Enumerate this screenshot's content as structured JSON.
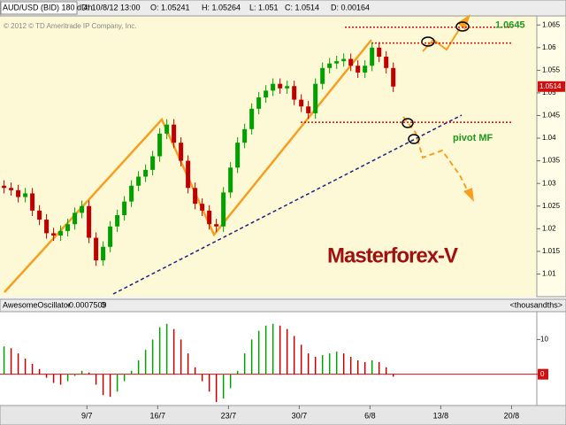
{
  "header": {
    "symbol": "AUD/USD (BID) 180 d 4h",
    "date": "D: 10/8/12 13:00",
    "open": "O: 1.05241",
    "high": "H: 1.05264",
    "low": "L: 1.051",
    "close": "C: 1.0514",
    "delta": "D: 0.00164",
    "copyright": "© 2012 © TD Ameritrade IP Company, Inc."
  },
  "chart_data": [
    {
      "type": "candlestick",
      "annotations": [
        "Masterforex-V",
        "pivot MF"
      ],
      "levels": [
        1.0645,
        1.061,
        1.0435
      ],
      "level_color": "#d01010",
      "up_color": "#00a000",
      "down_color": "#c00000",
      "x": [
        0.8,
        1.5,
        2.2,
        2.9,
        3.6,
        4.3,
        5,
        5.7,
        6.4,
        7.1,
        7.8,
        8.5,
        9.2,
        9.9,
        10.6,
        11.3,
        12,
        12.7,
        13.4,
        14.1,
        14.8,
        15.5,
        16.2,
        16.9,
        17.6,
        18.3,
        19,
        19.7,
        20.4,
        21.1,
        21.8,
        22.5,
        23.2,
        23.9,
        24.6,
        25.3,
        26,
        26.7,
        27.4,
        28.1,
        28.8,
        29.5,
        30.2,
        30.9,
        31.6,
        32.3,
        33,
        33.7,
        34.4,
        35.1,
        35.8,
        36.5,
        37.2,
        37.9,
        38.6,
        39.3
      ],
      "open": [
        1.0295,
        1.029,
        1.0285,
        1.027,
        1.0278,
        1.024,
        1.022,
        1.019,
        1.0185,
        1.0195,
        1.021,
        1.0235,
        1.025,
        1.018,
        1.013,
        1.016,
        1.0205,
        1.023,
        1.026,
        1.0295,
        1.0315,
        1.033,
        1.036,
        1.041,
        1.043,
        1.039,
        1.035,
        1.029,
        1.0255,
        1.024,
        1.021,
        1.0205,
        1.028,
        1.0335,
        1.039,
        1.042,
        1.0465,
        1.049,
        1.0505,
        1.052,
        1.051,
        1.0515,
        1.0485,
        1.047,
        1.0455,
        1.052,
        1.0555,
        1.0565,
        1.057,
        1.0575,
        1.056,
        1.0545,
        1.056,
        1.06,
        1.058,
        1.0555
      ],
      "high": [
        1.0307,
        1.0302,
        1.0297,
        1.029,
        1.029,
        1.0252,
        1.0232,
        1.0202,
        1.0207,
        1.0222,
        1.0247,
        1.0262,
        1.0262,
        1.0192,
        1.0172,
        1.0217,
        1.0242,
        1.0272,
        1.0307,
        1.0327,
        1.0342,
        1.0372,
        1.0422,
        1.0442,
        1.0442,
        1.0402,
        1.0362,
        1.0302,
        1.0267,
        1.0252,
        1.0222,
        1.0292,
        1.0347,
        1.0402,
        1.0432,
        1.0477,
        1.0502,
        1.0517,
        1.0532,
        1.0532,
        1.0527,
        1.0527,
        1.0497,
        1.0482,
        1.0532,
        1.0567,
        1.0577,
        1.0582,
        1.0587,
        1.0587,
        1.0572,
        1.0572,
        1.0612,
        1.0612,
        1.0592,
        1.0567
      ],
      "low": [
        1.0278,
        1.0273,
        1.0258,
        1.0258,
        1.0228,
        1.0208,
        1.0178,
        1.0173,
        1.0173,
        1.0183,
        1.0198,
        1.0223,
        1.0168,
        1.0118,
        1.0118,
        1.0148,
        1.0193,
        1.0218,
        1.0248,
        1.0283,
        1.0303,
        1.0318,
        1.0348,
        1.0398,
        1.0378,
        1.0338,
        1.0278,
        1.0243,
        1.0228,
        1.0198,
        1.0193,
        1.0193,
        1.0268,
        1.0323,
        1.0378,
        1.0408,
        1.0453,
        1.0478,
        1.0493,
        1.0498,
        1.0498,
        1.0473,
        1.0458,
        1.0443,
        1.0443,
        1.0508,
        1.0543,
        1.0553,
        1.0558,
        1.0548,
        1.0533,
        1.0533,
        1.0548,
        1.0568,
        1.0543,
        1.0502
      ],
      "close": [
        1.029,
        1.0285,
        1.027,
        1.0278,
        1.024,
        1.022,
        1.019,
        1.0185,
        1.0195,
        1.021,
        1.0235,
        1.025,
        1.018,
        1.013,
        1.016,
        1.0205,
        1.023,
        1.026,
        1.0295,
        1.0315,
        1.033,
        1.036,
        1.041,
        1.043,
        1.039,
        1.035,
        1.029,
        1.0255,
        1.024,
        1.021,
        1.0205,
        1.028,
        1.0335,
        1.039,
        1.042,
        1.0465,
        1.049,
        1.0505,
        1.052,
        1.051,
        1.0515,
        1.0485,
        1.047,
        1.0455,
        1.052,
        1.0555,
        1.0565,
        1.057,
        1.0575,
        1.056,
        1.0545,
        1.056,
        1.06,
        1.058,
        1.0555,
        1.0514
      ],
      "xlim": [
        0.4,
        53.5
      ],
      "xticks": [
        {
          "value": 9,
          "label": "9/7"
        },
        {
          "value": 16,
          "label": "16/7"
        },
        {
          "value": 23,
          "label": "23/7"
        },
        {
          "value": 30,
          "label": "30/7"
        },
        {
          "value": 37,
          "label": "6/8"
        },
        {
          "value": 44,
          "label": "13/8"
        },
        {
          "value": 51,
          "label": "20/8"
        }
      ],
      "ylim": [
        1.005,
        1.067
      ],
      "yticks": [
        1.01,
        1.015,
        1.02,
        1.025,
        1.03,
        1.035,
        1.04,
        1.045,
        1.05,
        1.055,
        1.06,
        1.065
      ]
    },
    {
      "type": "bar",
      "title": "AwesomeOscillator",
      "current": "-0.0007509",
      "flag": "0",
      "unit": "<thousandths>",
      "up_color": "#00a000",
      "down_color": "#c00000",
      "x": [
        0.8,
        1.5,
        2.2,
        2.9,
        3.6,
        4.3,
        5,
        5.7,
        6.4,
        7.1,
        7.8,
        8.5,
        9.2,
        9.9,
        10.6,
        11.3,
        12,
        12.7,
        13.4,
        14.1,
        14.8,
        15.5,
        16.2,
        16.9,
        17.6,
        18.3,
        19,
        19.7,
        20.4,
        21.1,
        21.8,
        22.5,
        23.2,
        23.9,
        24.6,
        25.3,
        26,
        26.7,
        27.4,
        28.1,
        28.8,
        29.5,
        30.2,
        30.9,
        31.6,
        32.3,
        33,
        33.7,
        34.4,
        35.1,
        35.8,
        36.5,
        37.2,
        37.9,
        38.6,
        39.3
      ],
      "values": [
        8,
        7.5,
        6,
        4.5,
        3,
        1.5,
        -1,
        -2.5,
        -3,
        -2,
        -0.5,
        1,
        0.5,
        -3,
        -6,
        -6.5,
        -5,
        -2,
        1,
        4,
        7,
        10,
        13.5,
        14.5,
        13,
        10,
        6,
        2,
        -2,
        -5,
        -8,
        -7,
        -4,
        1,
        6,
        10,
        12.5,
        14,
        14.5,
        14,
        13,
        11,
        8.5,
        6,
        5,
        5.5,
        6,
        6.5,
        6,
        5,
        4,
        3.5,
        4,
        3.5,
        2,
        -0.7
      ],
      "xlim": [
        0.4,
        53.5
      ],
      "ylim": [
        -9,
        18
      ],
      "yticks": [
        0,
        10
      ]
    }
  ]
}
